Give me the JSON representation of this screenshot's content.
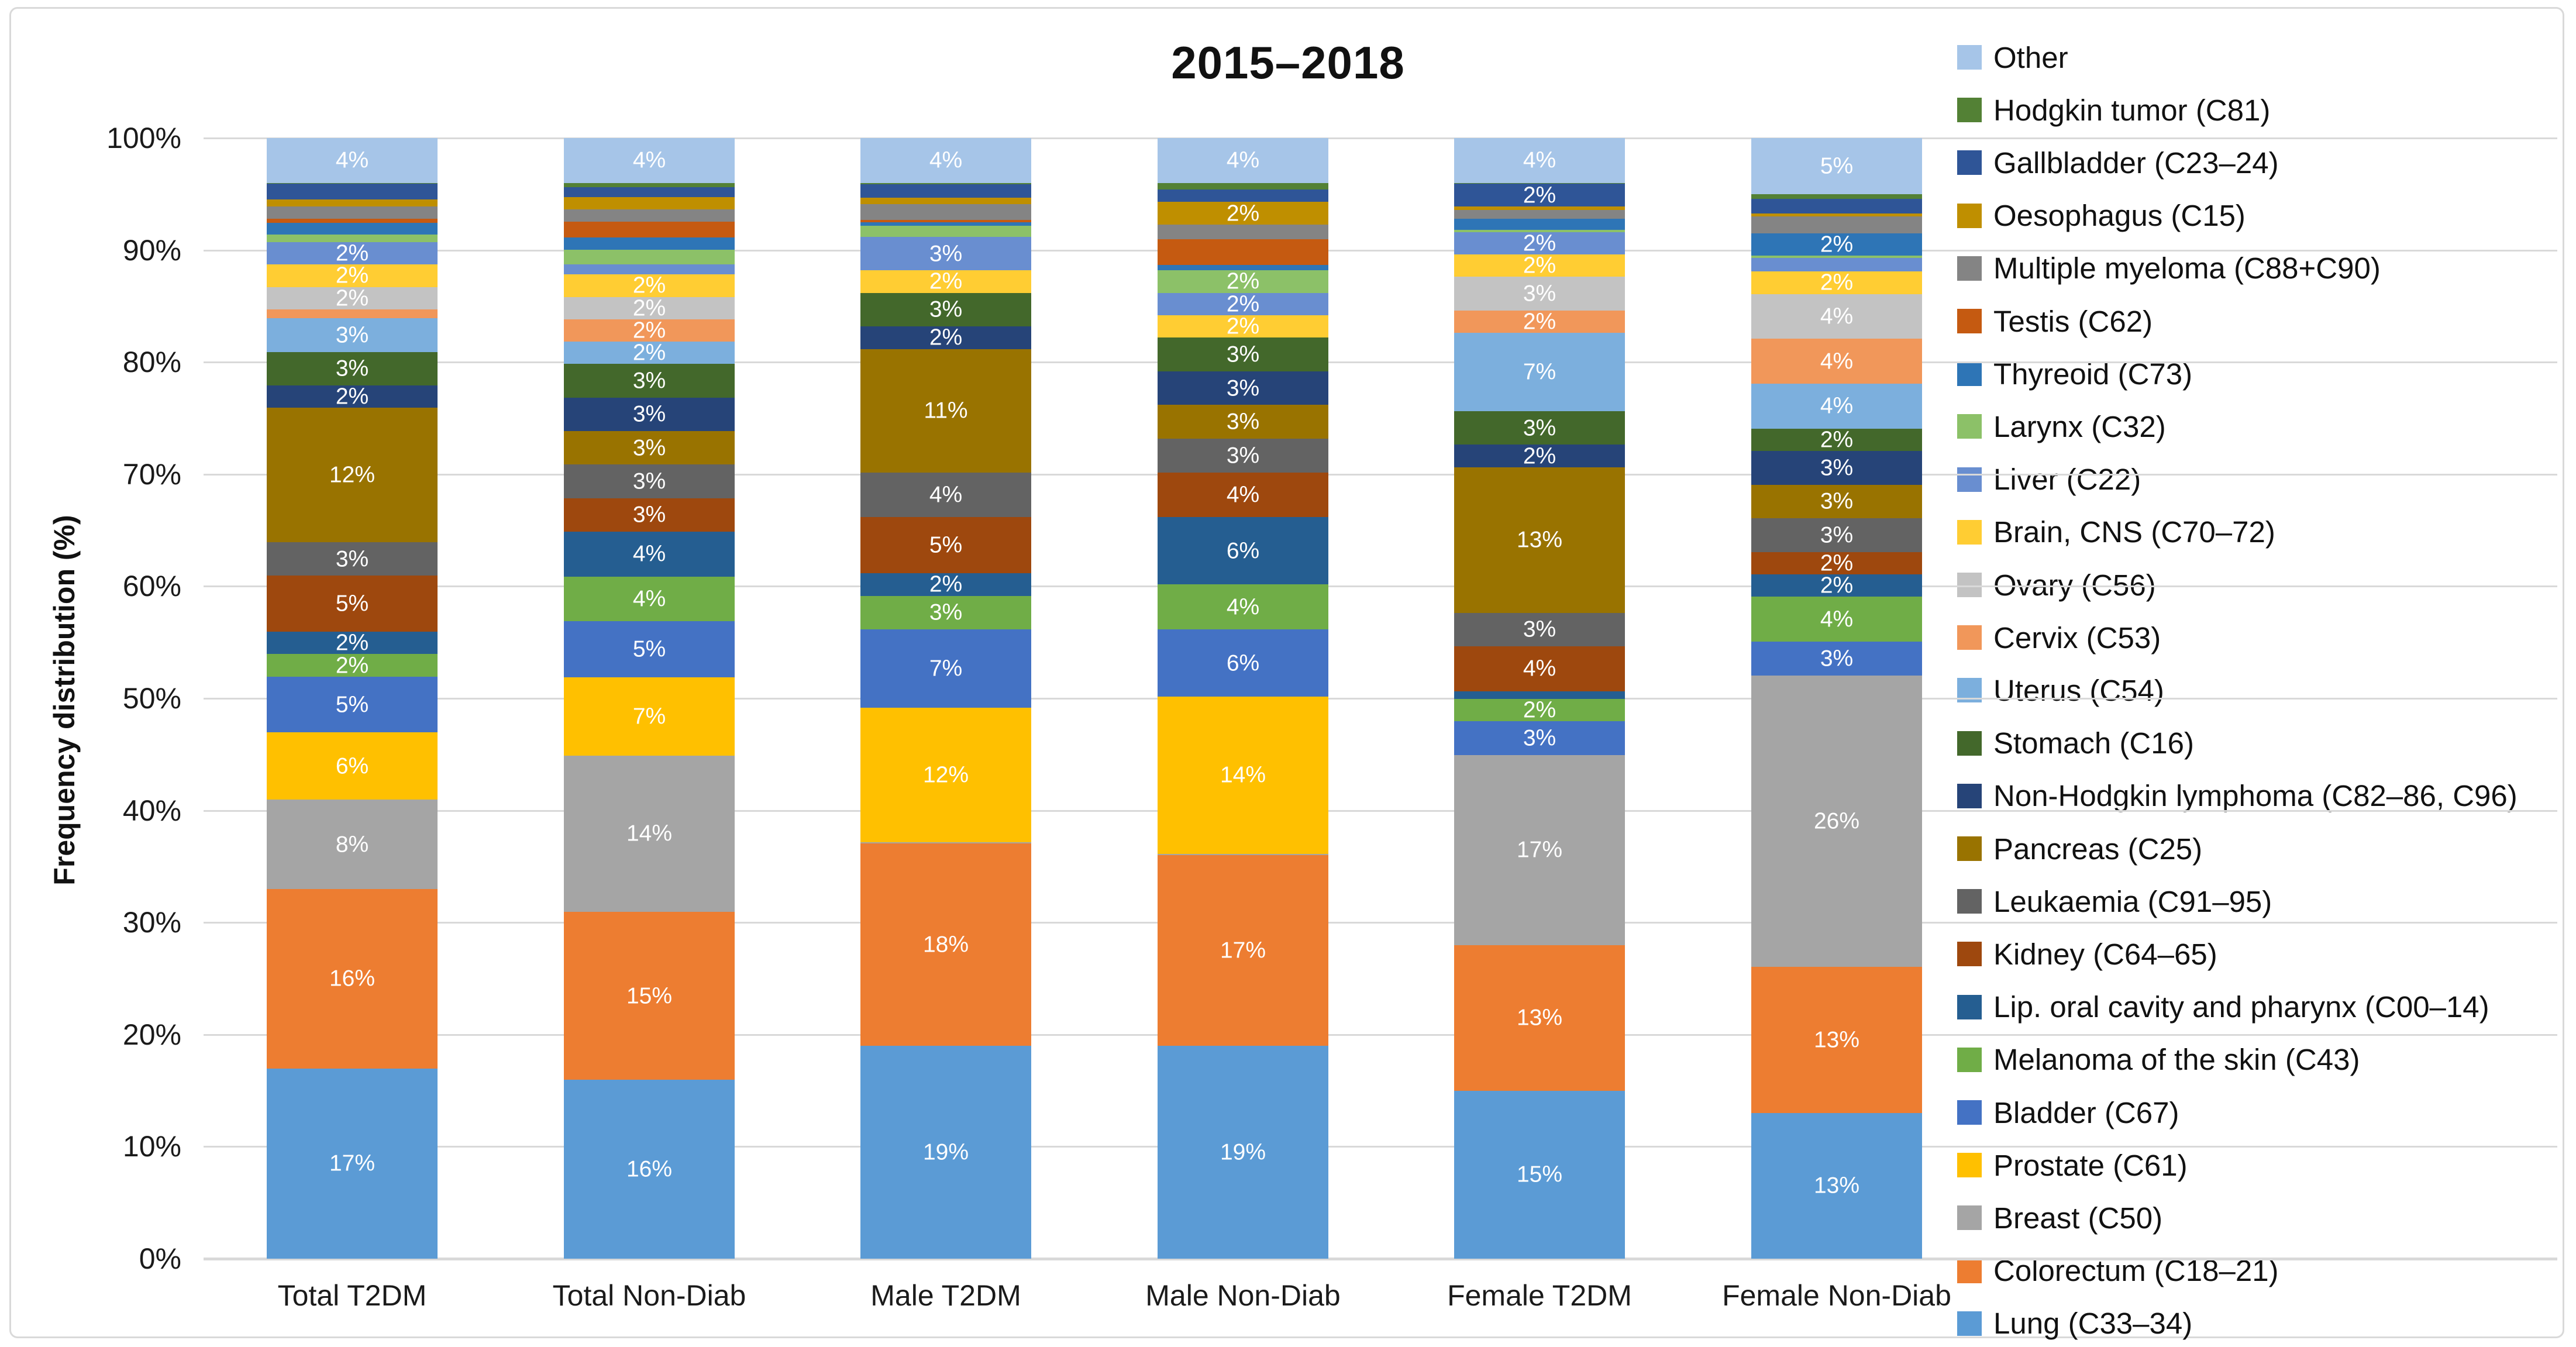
{
  "title": "2015–2018",
  "y_axis": {
    "title": "Frequency distribution (%)",
    "tick_labels": [
      "0%",
      "10%",
      "20%",
      "30%",
      "40%",
      "50%",
      "60%",
      "70%",
      "80%",
      "90%",
      "100%"
    ]
  },
  "chart_data": {
    "type": "bar",
    "stacked": true,
    "title": "2015–2018",
    "xlabel": "",
    "ylabel": "Frequency distribution (%)",
    "ylim": [
      0,
      100
    ],
    "grid": true,
    "legend_position": "right",
    "legend_order": "top item is topmost stack segment",
    "categories": [
      "Total T2DM",
      "Total Non-Diab",
      "Male T2DM",
      "Male Non-Diab",
      "Female T2DM",
      "Female Non-Diab"
    ],
    "series": [
      {
        "name": "Lung (C33–34)",
        "color": "#5B9BD5",
        "values": [
          17,
          16,
          19,
          19,
          15,
          13
        ],
        "labels": [
          "17%",
          "16%",
          "19%",
          "19%",
          "15%",
          "13%"
        ]
      },
      {
        "name": "Colorectum (C18–21)",
        "color": "#ED7D31",
        "values": [
          16,
          15,
          18,
          17,
          13,
          13
        ],
        "labels": [
          "16%",
          "15%",
          "18%",
          "17%",
          "13%",
          "13%"
        ]
      },
      {
        "name": "Breast (C50)",
        "color": "#A5A5A5",
        "values": [
          8,
          14,
          0.1,
          0.1,
          17,
          26
        ],
        "labels": [
          "8%",
          "14%",
          "",
          "",
          "17%",
          "26%"
        ]
      },
      {
        "name": "Prostate (C61)",
        "color": "#FFC000",
        "values": [
          6,
          7,
          12,
          14,
          0,
          0
        ],
        "labels": [
          "6%",
          "7%",
          "12%",
          "14%",
          "",
          ""
        ]
      },
      {
        "name": "Bladder (C67)",
        "color": "#4472C4",
        "values": [
          5,
          5,
          7,
          6,
          3,
          3
        ],
        "labels": [
          "5%",
          "5%",
          "7%",
          "6%",
          "3%",
          "3%"
        ]
      },
      {
        "name": "Melanoma of the skin (C43)",
        "color": "#70AD47",
        "values": [
          2,
          4,
          3,
          4,
          2,
          4
        ],
        "labels": [
          "2%",
          "4%",
          "3%",
          "4%",
          "2%",
          "4%"
        ]
      },
      {
        "name": "Lip. oral cavity and pharynx (C00–14)",
        "color": "#255E91",
        "values": [
          2,
          4,
          2,
          6,
          0.7,
          2
        ],
        "labels": [
          "2%",
          "4%",
          "2%",
          "6%",
          "",
          "2%"
        ]
      },
      {
        "name": "Kidney (C64–65)",
        "color": "#9E480E",
        "values": [
          5,
          3,
          5,
          4,
          4,
          2
        ],
        "labels": [
          "5%",
          "3%",
          "5%",
          "4%",
          "4%",
          "2%"
        ]
      },
      {
        "name": "Leukaemia (C91–95)",
        "color": "#636363",
        "values": [
          3,
          3,
          4,
          3,
          3,
          3
        ],
        "labels": [
          "3%",
          "3%",
          "4%",
          "3%",
          "3%",
          "3%"
        ]
      },
      {
        "name": "Pancreas (C25)",
        "color": "#997300",
        "values": [
          12,
          3,
          11,
          3,
          13,
          3
        ],
        "labels": [
          "12%",
          "3%",
          "11%",
          "3%",
          "13%",
          "3%"
        ]
      },
      {
        "name": "Non-Hodgkin lymphoma (C82–86, C96)",
        "color": "#264478",
        "values": [
          2,
          3,
          2,
          3,
          2,
          3
        ],
        "labels": [
          "2%",
          "3%",
          "2%",
          "3%",
          "2%",
          "3%"
        ]
      },
      {
        "name": "Stomach (C16)",
        "color": "#43682B",
        "values": [
          3,
          3,
          3,
          3,
          3,
          2
        ],
        "labels": [
          "3%",
          "3%",
          "3%",
          "3%",
          "3%",
          "2%"
        ]
      },
      {
        "name": "Uterus (C54)",
        "color": "#7CAFDD",
        "values": [
          3,
          2,
          0,
          0,
          7,
          4
        ],
        "labels": [
          "3%",
          "2%",
          "",
          "",
          "7%",
          "4%"
        ]
      },
      {
        "name": "Cervix (C53)",
        "color": "#F1975A",
        "values": [
          0.8,
          2,
          0,
          0,
          2,
          4
        ],
        "labels": [
          "",
          "2%",
          "",
          "",
          "2%",
          "4%"
        ]
      },
      {
        "name": "Ovary (C56)",
        "color": "#C3C3C3",
        "values": [
          2,
          2,
          0,
          0,
          3,
          4
        ],
        "labels": [
          "2%",
          "2%",
          "",
          "",
          "3%",
          "4%"
        ]
      },
      {
        "name": "Brain, CNS (C70–72)",
        "color": "#FFCD33",
        "values": [
          2,
          2,
          2,
          2,
          2,
          2
        ],
        "labels": [
          "2%",
          "2%",
          "2%",
          "2%",
          "2%",
          "2%"
        ]
      },
      {
        "name": "Liver (C22)",
        "color": "#698ED0",
        "values": [
          2,
          0.9,
          3,
          2,
          2,
          1.2
        ],
        "labels": [
          "2%",
          "",
          "3%",
          "2%",
          "2%",
          ""
        ]
      },
      {
        "name": "Larynx (C32)",
        "color": "#8CC168",
        "values": [
          0.7,
          1.3,
          1.0,
          2,
          0.2,
          0.2
        ],
        "labels": [
          "",
          "",
          "",
          "2%",
          "",
          ""
        ]
      },
      {
        "name": "Thyreoid (C73)",
        "color": "#2E75B6",
        "values": [
          1.0,
          1.1,
          0.3,
          0.5,
          1.0,
          2
        ],
        "labels": [
          "",
          "",
          "",
          "",
          "",
          "2%"
        ]
      },
      {
        "name": "Testis (C62)",
        "color": "#C55A11",
        "values": [
          0.4,
          1.4,
          0.2,
          2.3,
          0,
          0
        ],
        "labels": [
          "",
          "",
          "",
          "",
          "",
          ""
        ]
      },
      {
        "name": "Multiple myeloma (C88+C90)",
        "color": "#848484",
        "values": [
          1.1,
          1.1,
          1.4,
          1.3,
          0.8,
          1.5
        ],
        "labels": [
          "",
          "",
          "",
          "",
          "",
          ""
        ]
      },
      {
        "name": "Oesophagus (C15)",
        "color": "#BF8F00",
        "values": [
          0.6,
          1.1,
          0.6,
          2,
          0.3,
          0.3
        ],
        "labels": [
          "",
          "",
          "",
          "2%",
          "",
          ""
        ]
      },
      {
        "name": "Gallbladder (C23–24)",
        "color": "#2F5597",
        "values": [
          1.4,
          0.9,
          1.2,
          1.1,
          2,
          1.3
        ],
        "labels": [
          "",
          "",
          "",
          "",
          "2%",
          ""
        ]
      },
      {
        "name": "Hodgkin tumor (C81)",
        "color": "#538135",
        "values": [
          0.1,
          0.4,
          0.1,
          0.6,
          0.1,
          0.4
        ],
        "labels": [
          "",
          "",
          "",
          "",
          "",
          ""
        ]
      },
      {
        "name": "Other",
        "color": "#A6C5E8",
        "values": [
          4,
          4,
          4,
          4,
          4,
          5
        ],
        "labels": [
          "4%",
          "4%",
          "4%",
          "4%",
          "4%",
          "5%"
        ]
      }
    ]
  }
}
